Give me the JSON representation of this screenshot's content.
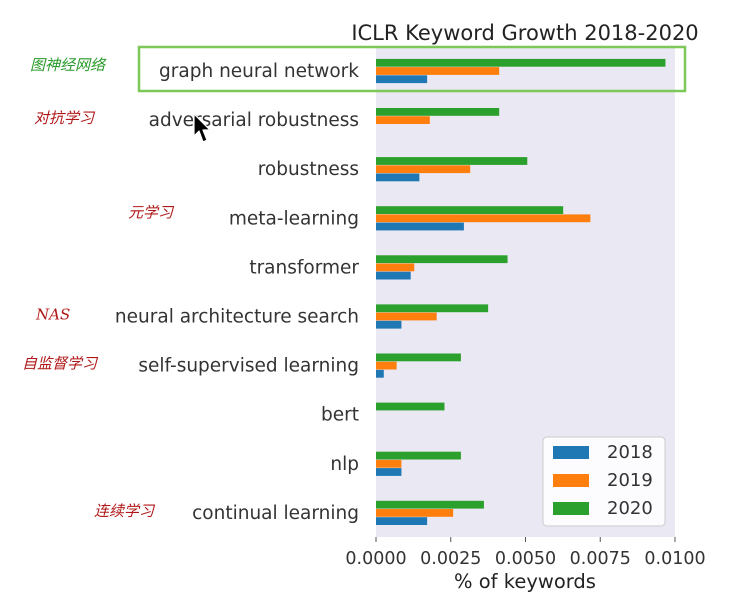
{
  "chart_data": {
    "type": "bar",
    "orientation": "horizontal",
    "title": "ICLR Keyword Growth 2018-2020",
    "xlabel": "% of keywords",
    "ylabel": "",
    "xlim": [
      0,
      0.01
    ],
    "xticks": [
      "0.0000",
      "0.0025",
      "0.0050",
      "0.0075",
      "0.0100"
    ],
    "grid": false,
    "legend_position": "lower-right",
    "categories": [
      "graph neural network",
      "adversarial robustness",
      "robustness",
      "meta-learning",
      "transformer",
      "neural architecture search",
      "self-supervised learning",
      "bert",
      "nlp",
      "continual learning"
    ],
    "series": [
      {
        "name": "2018",
        "color": "#1f77b4",
        "values": [
          0.00171,
          0,
          0.00145,
          0.00294,
          0.00116,
          0.00085,
          0.00026,
          0,
          0.00085,
          0.00171
        ]
      },
      {
        "name": "2019",
        "color": "#ff7f0e",
        "values": [
          0.00412,
          0.0018,
          0.00315,
          0.00717,
          0.00128,
          0.00203,
          0.00069,
          0,
          0.00085,
          0.00258
        ]
      },
      {
        "name": "2020",
        "color": "#2ca02c",
        "values": [
          0.00968,
          0.00412,
          0.00506,
          0.00626,
          0.0044,
          0.00375,
          0.00284,
          0.00229,
          0.00284,
          0.00361
        ]
      }
    ]
  },
  "annotations": [
    {
      "text": "图神经网络",
      "color": "#2a9a2a",
      "row": 0
    },
    {
      "text": "对抗学习",
      "color": "#b01818",
      "row": 1
    },
    {
      "text": "元学习",
      "color": "#b01818",
      "row": 3
    },
    {
      "text": "NAS",
      "color": "#b01818",
      "row": 5
    },
    {
      "text": "自监督学习",
      "color": "#b01818",
      "row": 6
    },
    {
      "text": "连续学习",
      "color": "#b01818",
      "row": 9
    }
  ],
  "highlight": {
    "row": 0,
    "color": "#7dc858"
  },
  "colors": {
    "plot_background": "#eae8f3",
    "cursor": "#000000"
  },
  "icons": {
    "cursor": "mouse-pointer-icon"
  }
}
